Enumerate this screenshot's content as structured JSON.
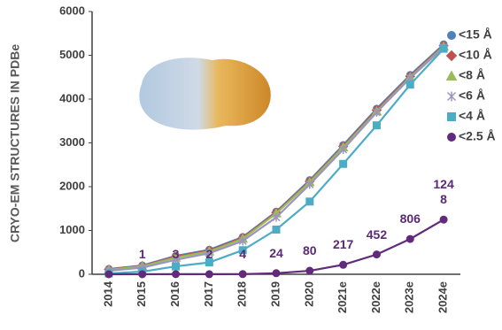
{
  "chart_data": {
    "type": "line",
    "y_label": "CRYO-EM STRUCTURES IN PDBe",
    "categories": [
      "2014",
      "2015",
      "2016",
      "2017",
      "2018",
      "2019",
      "2020",
      "2021e",
      "2022e",
      "2023e",
      "2024e"
    ],
    "ylim": [
      0,
      6000
    ],
    "yticks": [
      0,
      1000,
      2000,
      3000,
      4000,
      5000,
      6000
    ],
    "legend": "right",
    "series": [
      {
        "name": "<15 Å",
        "color": "#4f81bd",
        "marker": "circle",
        "values": [
          120,
          200,
          420,
          560,
          850,
          1430,
          2150,
          2950,
          3780,
          4550,
          5250
        ]
      },
      {
        "name": "<10 Å",
        "color": "#c0504d",
        "marker": "diamond",
        "values": [
          110,
          190,
          400,
          540,
          830,
          1410,
          2120,
          2920,
          3750,
          4520,
          5220
        ]
      },
      {
        "name": "<8 Å",
        "color": "#9bbb59",
        "marker": "triangle",
        "values": [
          100,
          180,
          380,
          520,
          810,
          1390,
          2100,
          2900,
          3720,
          4500,
          5200
        ]
      },
      {
        "name": "<6 Å",
        "color": "#9a94c0",
        "marker": "star",
        "values": [
          80,
          150,
          330,
          480,
          760,
          1300,
          2050,
          2850,
          3700,
          4480,
          5180
        ]
      },
      {
        "name": "<4 Å",
        "color": "#4bacc6",
        "marker": "square",
        "values": [
          20,
          60,
          180,
          270,
          550,
          1020,
          1660,
          2520,
          3400,
          4330,
          5150
        ]
      },
      {
        "name": "<2.5 Å",
        "color": "#622a7a",
        "marker": "circle",
        "values": [
          0,
          1,
          3,
          2,
          4,
          24,
          80,
          217,
          452,
          806,
          1248
        ],
        "value_labels": [
          null,
          "1",
          "3",
          "2",
          "4",
          "24",
          "80",
          "217",
          "452",
          "806",
          "1248"
        ]
      }
    ]
  }
}
